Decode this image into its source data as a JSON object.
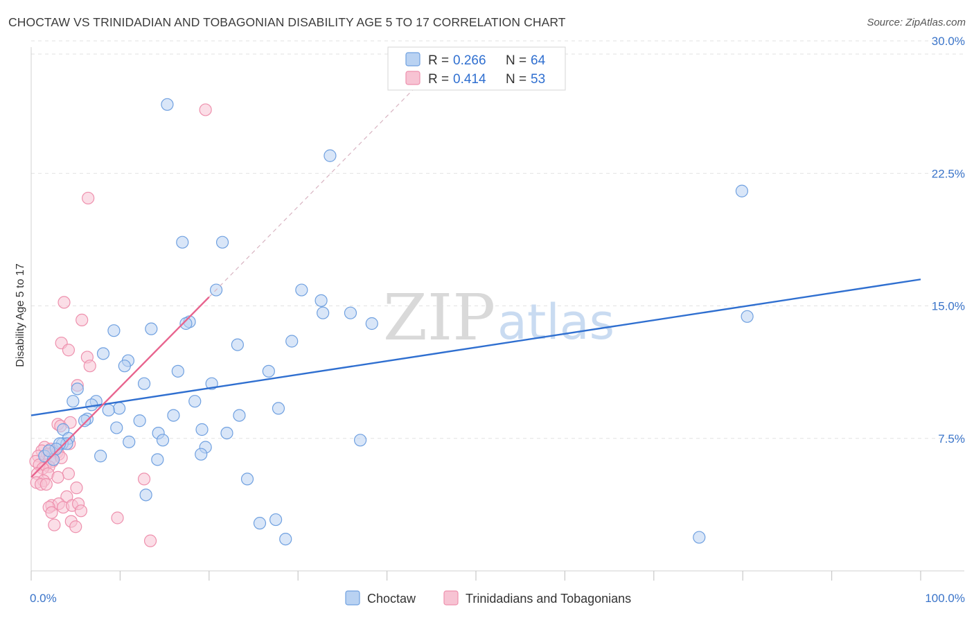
{
  "title": "CHOCTAW VS TRINIDADIAN AND TOBAGONIAN DISABILITY AGE 5 TO 17 CORRELATION CHART",
  "source": "Source: ZipAtlas.com",
  "watermark": {
    "zip": "ZIP",
    "atlas": "atlas"
  },
  "colors": {
    "choctaw": "#6fa0e0",
    "choctaw_fill": "#b9d2f2",
    "choctaw_line": "#2f6fd0",
    "trini": "#ee90ad",
    "trini_fill": "#f7c3d3",
    "trini_line": "#e8648e",
    "tick_label": "#3a74c9",
    "grid": "#e2e2e2"
  },
  "legend": {
    "rows": [
      {
        "r_label": "R = ",
        "r_value": "0.266",
        "n_label": "N = ",
        "n_value": "64"
      },
      {
        "r_label": "R = ",
        "r_value": "0.414",
        "n_label": "N = ",
        "n_value": "53"
      }
    ]
  },
  "bottom_legend": [
    "Choctaw",
    "Trinidadians and Tobagonians"
  ],
  "chart_data": {
    "type": "scatter",
    "ylabel": "Disability Age 5 to 17",
    "xlim": [
      0,
      100
    ],
    "ylim": [
      0,
      31
    ],
    "x_tick_labels": [
      "0.0%",
      "100.0%"
    ],
    "y_ticks": [
      7.5,
      15.0,
      22.5,
      30.0
    ],
    "y_tick_labels": [
      "7.5%",
      "15.0%",
      "22.5%",
      "30.0%"
    ],
    "grid": "horizontal dashed",
    "legend_position": "top-center",
    "series": [
      {
        "name": "Choctaw",
        "r": 0.266,
        "n": 64,
        "trend": {
          "x": [
            0,
            100
          ],
          "y": [
            8.8,
            16.5
          ]
        },
        "points": [
          [
            15.3,
            26.4
          ],
          [
            33.6,
            23.5
          ],
          [
            79.9,
            21.5
          ],
          [
            17.0,
            18.6
          ],
          [
            21.5,
            18.6
          ],
          [
            20.8,
            15.9
          ],
          [
            30.4,
            15.9
          ],
          [
            32.6,
            15.3
          ],
          [
            32.8,
            14.6
          ],
          [
            35.9,
            14.6
          ],
          [
            80.5,
            14.4
          ],
          [
            38.3,
            14.0
          ],
          [
            17.8,
            14.1
          ],
          [
            17.4,
            14.0
          ],
          [
            9.3,
            13.6
          ],
          [
            13.5,
            13.7
          ],
          [
            29.3,
            13.0
          ],
          [
            23.2,
            12.8
          ],
          [
            8.1,
            12.3
          ],
          [
            10.9,
            11.9
          ],
          [
            10.5,
            11.6
          ],
          [
            16.5,
            11.3
          ],
          [
            26.7,
            11.3
          ],
          [
            12.7,
            10.6
          ],
          [
            20.3,
            10.6
          ],
          [
            5.2,
            10.3
          ],
          [
            4.7,
            9.6
          ],
          [
            7.3,
            9.6
          ],
          [
            18.4,
            9.6
          ],
          [
            6.8,
            9.4
          ],
          [
            9.9,
            9.2
          ],
          [
            8.7,
            9.1
          ],
          [
            27.8,
            9.2
          ],
          [
            16.0,
            8.8
          ],
          [
            23.4,
            8.8
          ],
          [
            6.3,
            8.6
          ],
          [
            6.0,
            8.5
          ],
          [
            12.2,
            8.5
          ],
          [
            9.6,
            8.1
          ],
          [
            3.6,
            8.0
          ],
          [
            19.2,
            8.0
          ],
          [
            14.3,
            7.8
          ],
          [
            22.0,
            7.8
          ],
          [
            4.2,
            7.5
          ],
          [
            14.8,
            7.4
          ],
          [
            37.0,
            7.4
          ],
          [
            3.5,
            7.2
          ],
          [
            4.0,
            7.2
          ],
          [
            11.0,
            7.3
          ],
          [
            3.2,
            7.2
          ],
          [
            19.6,
            7.0
          ],
          [
            2.8,
            6.9
          ],
          [
            19.1,
            6.6
          ],
          [
            7.8,
            6.5
          ],
          [
            1.5,
            6.5
          ],
          [
            14.2,
            6.3
          ],
          [
            2.5,
            6.3
          ],
          [
            24.3,
            5.2
          ],
          [
            12.9,
            4.3
          ],
          [
            25.7,
            2.7
          ],
          [
            27.5,
            2.9
          ],
          [
            28.6,
            1.8
          ],
          [
            75.1,
            1.9
          ],
          [
            2.0,
            6.8
          ]
        ]
      },
      {
        "name": "Trinidadians and Tobagonians",
        "r": 0.414,
        "n": 53,
        "trend": {
          "x": [
            0,
            20
          ],
          "y": [
            5.3,
            15.5
          ]
        },
        "trend_ext": {
          "x": [
            20,
            45
          ],
          "y": [
            15.5,
            28.3
          ]
        },
        "points": [
          [
            19.6,
            26.1
          ],
          [
            6.4,
            21.1
          ],
          [
            3.7,
            15.2
          ],
          [
            5.7,
            14.2
          ],
          [
            3.4,
            12.9
          ],
          [
            4.2,
            12.5
          ],
          [
            6.3,
            12.1
          ],
          [
            6.6,
            11.6
          ],
          [
            5.2,
            10.5
          ],
          [
            3.0,
            8.3
          ],
          [
            3.3,
            8.2
          ],
          [
            4.4,
            8.4
          ],
          [
            1.5,
            7.0
          ],
          [
            2.2,
            6.9
          ],
          [
            4.3,
            7.2
          ],
          [
            2.6,
            6.8
          ],
          [
            1.2,
            6.8
          ],
          [
            2.9,
            6.7
          ],
          [
            3.1,
            6.6
          ],
          [
            1.8,
            6.6
          ],
          [
            0.8,
            6.5
          ],
          [
            2.1,
            6.3
          ],
          [
            2.4,
            6.2
          ],
          [
            3.4,
            6.4
          ],
          [
            0.5,
            6.2
          ],
          [
            1.6,
            6.0
          ],
          [
            2.0,
            5.9
          ],
          [
            0.9,
            6.0
          ],
          [
            1.3,
            5.8
          ],
          [
            0.7,
            5.5
          ],
          [
            1.9,
            5.5
          ],
          [
            4.2,
            5.5
          ],
          [
            3.0,
            5.3
          ],
          [
            12.7,
            5.2
          ],
          [
            1.4,
            5.1
          ],
          [
            0.6,
            5.0
          ],
          [
            1.1,
            4.9
          ],
          [
            1.7,
            4.9
          ],
          [
            5.1,
            4.7
          ],
          [
            4.0,
            4.2
          ],
          [
            2.3,
            3.7
          ],
          [
            3.1,
            3.8
          ],
          [
            3.6,
            3.6
          ],
          [
            4.6,
            3.7
          ],
          [
            5.3,
            3.8
          ],
          [
            2.0,
            3.6
          ],
          [
            5.6,
            3.4
          ],
          [
            2.3,
            3.3
          ],
          [
            9.7,
            3.0
          ],
          [
            4.5,
            2.8
          ],
          [
            2.6,
            2.6
          ],
          [
            5.0,
            2.5
          ],
          [
            13.4,
            1.7
          ]
        ]
      }
    ]
  }
}
